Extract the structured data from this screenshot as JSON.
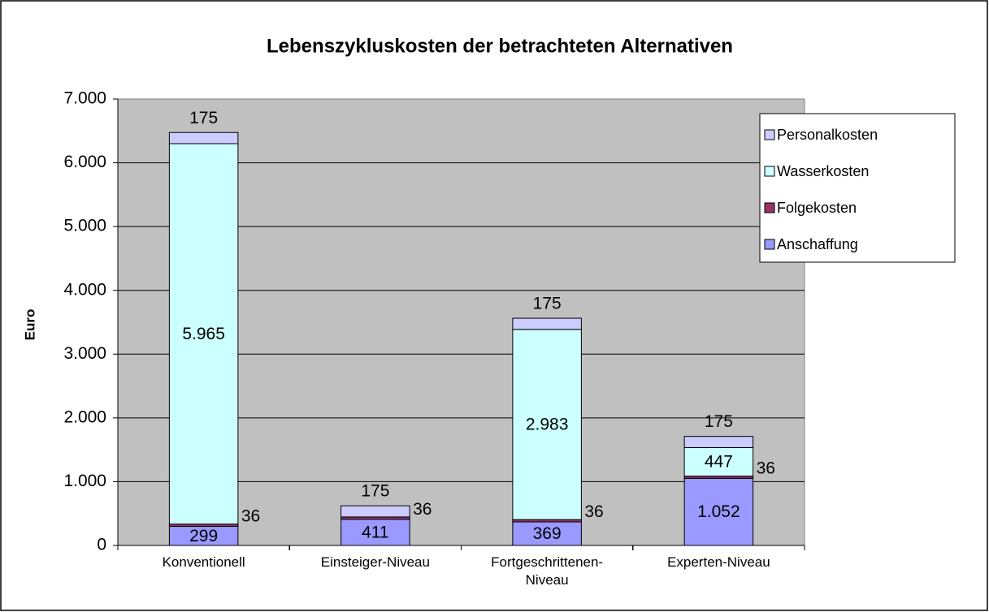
{
  "chart_data": {
    "type": "stacked_bar",
    "title": "Lebenszykluskosten der betrachteten Alternativen",
    "y_label": "Euro",
    "categories": [
      "Konventionell",
      "Einsteiger-Niveau",
      "Fortgeschrittenen-Niveau",
      "Experten-Niveau"
    ],
    "series": [
      {
        "name": "Anschaffung",
        "color": "#9999ff",
        "values": [
          299,
          411,
          369,
          1052
        ],
        "value_labels": [
          "299",
          "411",
          "369",
          "1.052"
        ]
      },
      {
        "name": "Folgekosten",
        "color": "#993366",
        "values": [
          36,
          36,
          36,
          36
        ]
      },
      {
        "name": "Wasserkosten",
        "color": "#ccffff",
        "values": [
          5965,
          0,
          2983,
          447
        ],
        "value_labels": [
          "5.965",
          null,
          "2.983",
          "447"
        ]
      },
      {
        "name": "Personalkosten",
        "color": "#ccccff",
        "values": [
          175,
          175,
          175,
          175
        ]
      }
    ],
    "ylim": [
      0,
      7000
    ],
    "yticks": [
      0,
      {
        "value": 1000,
        "label": "1.000"
      },
      {
        "value": 2000,
        "label": "2.000"
      },
      {
        "value": 3000,
        "label": "3.000"
      },
      {
        "value": 4000,
        "label": "4.000"
      },
      {
        "value": 5000,
        "label": "5.000"
      },
      {
        "value": 6000,
        "label": "6.000"
      },
      {
        "value": 7000,
        "label": "7.000"
      }
    ],
    "grid": true,
    "plot_background": "#c0c0c0",
    "legend": "right"
  }
}
